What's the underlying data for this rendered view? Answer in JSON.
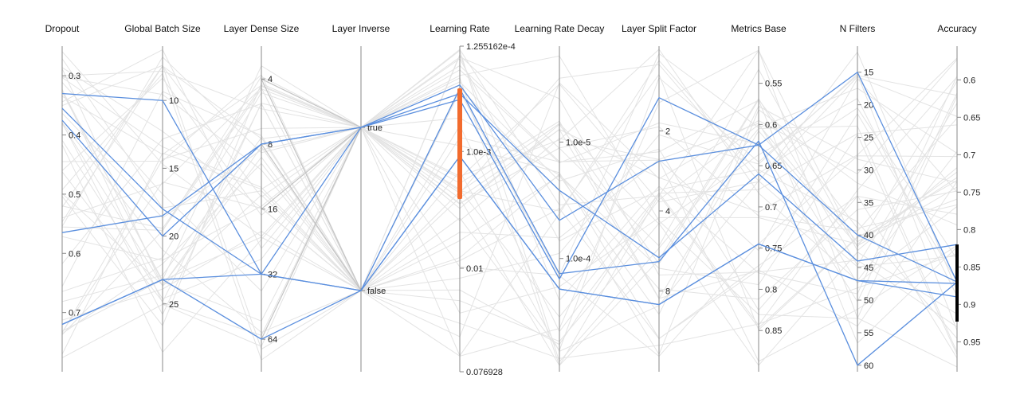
{
  "chart_data": {
    "type": "parallel_coordinates",
    "axes": [
      {
        "key": "dropout",
        "label": "Dropout",
        "kind": "linear",
        "domain": [
          0.25,
          0.8
        ],
        "ticks": [
          0.3,
          0.4,
          0.5,
          0.6,
          0.7
        ],
        "tick_labels": [
          "0.3",
          "0.4",
          "0.5",
          "0.6",
          "0.7"
        ]
      },
      {
        "key": "batch",
        "label": "Global Batch Size",
        "kind": "linear",
        "domain": [
          6,
          30
        ],
        "ticks": [
          10,
          15,
          20,
          25
        ],
        "tick_labels": [
          "10",
          "15",
          "20",
          "25"
        ]
      },
      {
        "key": "dense",
        "label": "Layer Dense Size",
        "kind": "log",
        "domain": [
          2.82,
          90.5
        ],
        "ticks": [
          4,
          8,
          16,
          32,
          64
        ],
        "tick_labels": [
          "4",
          "8",
          "16",
          "32",
          "64"
        ]
      },
      {
        "key": "inverse",
        "label": "Layer Inverse",
        "kind": "categorical",
        "categories": [
          "true",
          "false"
        ],
        "tick_labels": [
          "true",
          "false"
        ]
      },
      {
        "key": "lr",
        "label": "Learning Rate",
        "kind": "log",
        "domain": [
          0.0001255162,
          0.076928
        ],
        "ticks": [
          0.0001255162,
          0.001,
          0.01,
          0.076928
        ],
        "tick_labels": [
          "1.255162e-4",
          "1.0e-3",
          "0.01",
          "0.076928"
        ]
      },
      {
        "key": "lr_decay",
        "label": "Learning Rate Decay",
        "kind": "log",
        "domain": [
          1.5e-06,
          0.00094
        ],
        "ticks": [
          1e-05,
          0.0001
        ],
        "tick_labels": [
          "1.0e-5",
          "1.0e-4"
        ]
      },
      {
        "key": "split",
        "label": "Layer Split Factor",
        "kind": "log",
        "domain": [
          0.96,
          16.1
        ],
        "ticks": [
          2,
          4,
          8
        ],
        "tick_labels": [
          "2",
          "4",
          "8"
        ]
      },
      {
        "key": "metrics",
        "label": "Metrics Base",
        "kind": "linear",
        "domain": [
          0.505,
          0.9
        ],
        "ticks": [
          0.55,
          0.6,
          0.65,
          0.7,
          0.75,
          0.8,
          0.85
        ],
        "tick_labels": [
          "0.55",
          "0.6",
          "0.65",
          "0.7",
          "0.75",
          "0.8",
          "0.85"
        ]
      },
      {
        "key": "filters",
        "label": "N Filters",
        "kind": "linear",
        "domain": [
          11,
          61
        ],
        "ticks": [
          15,
          20,
          25,
          30,
          35,
          40,
          45,
          50,
          55,
          60
        ],
        "tick_labels": [
          "15",
          "20",
          "25",
          "30",
          "35",
          "40",
          "45",
          "50",
          "55",
          "60"
        ]
      },
      {
        "key": "accuracy",
        "label": "Accuracy",
        "kind": "linear",
        "domain": [
          0.555,
          0.99
        ],
        "ticks": [
          0.6,
          0.65,
          0.7,
          0.75,
          0.8,
          0.85,
          0.9,
          0.95
        ],
        "tick_labels": [
          "0.6",
          "0.65",
          "0.7",
          "0.75",
          "0.8",
          "0.85",
          "0.9",
          "0.95"
        ]
      }
    ],
    "brushes": [
      {
        "axis": "lr",
        "range": [
          0.000288,
          0.00256
        ],
        "color": "#f26b2e"
      },
      {
        "axis": "accuracy",
        "range": [
          0.82,
          0.923
        ],
        "color": "#000000"
      }
    ],
    "selected_series": [
      {
        "dropout": 0.33,
        "batch": 10,
        "dense": 32,
        "inverse": "false",
        "lr": 0.00029,
        "lr_decay": 0.000135,
        "split": 6.2,
        "metrics": 0.62,
        "filters": 60,
        "accuracy": 0.87
      },
      {
        "dropout": 0.355,
        "batch": 18,
        "dense": 32,
        "inverse": "true",
        "lr": 0.00036,
        "lr_decay": 0.00015,
        "split": 1.5,
        "metrics": 0.625,
        "filters": 15,
        "accuracy": 0.87
      },
      {
        "dropout": 0.375,
        "batch": 20,
        "dense": 8,
        "inverse": "true",
        "lr": 0.00032,
        "lr_decay": 2.6e-05,
        "split": 6.0,
        "metrics": 0.66,
        "filters": 44,
        "accuracy": 0.82
      },
      {
        "dropout": 0.565,
        "batch": 18.5,
        "dense": 8,
        "inverse": "true",
        "lr": 0.00027,
        "lr_decay": 4.7e-05,
        "split": 2.6,
        "metrics": 0.625,
        "filters": 40,
        "accuracy": 0.87
      },
      {
        "dropout": 0.72,
        "batch": 23.2,
        "dense": 32,
        "inverse": "false",
        "lr": 0.0011,
        "lr_decay": 0.000183,
        "split": 9.0,
        "metrics": 0.745,
        "filters": 47,
        "accuracy": 0.872
      },
      {
        "dropout": 0.72,
        "batch": 23.2,
        "dense": 64,
        "inverse": "false",
        "lr": 0.0011,
        "lr_decay": 0.000183,
        "split": 9.0,
        "metrics": 0.745,
        "filters": 47,
        "accuracy": 0.89
      }
    ],
    "grey_series": [
      {
        "dense": 4,
        "inverse": "true"
      },
      {
        "dense": 4,
        "inverse": "false"
      },
      {
        "dense": 16,
        "inverse": "true"
      },
      {
        "dense": 64,
        "inverse": "true"
      },
      {
        "dense": 8,
        "inverse": "false"
      }
    ],
    "background_lines": 45
  }
}
